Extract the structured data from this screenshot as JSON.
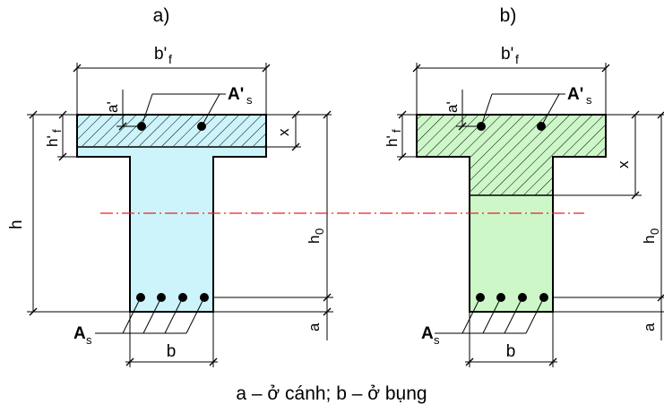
{
  "panels": [
    {
      "label": "a)",
      "flange_width": "b'",
      "flange_width_sub": "f",
      "flange_height": "h'",
      "flange_height_sub": "f",
      "cover_top": "a'",
      "top_rebar": "A'",
      "top_rebar_sub": "s",
      "compression_depth": "x",
      "total_height": "h",
      "effective_height": "h",
      "effective_height_sub": "0",
      "cover_bottom": "a",
      "bottom_rebar": "A",
      "bottom_rebar_sub": "s",
      "web_width": "b"
    },
    {
      "label": "b)",
      "flange_width": "b'",
      "flange_width_sub": "f",
      "flange_height": "h'",
      "flange_height_sub": "f",
      "cover_top": "a'",
      "top_rebar": "A'",
      "top_rebar_sub": "s",
      "compression_depth": "x",
      "effective_height": "h",
      "effective_height_sub": "0",
      "cover_bottom": "a",
      "bottom_rebar": "A",
      "bottom_rebar_sub": "s",
      "web_width": "b"
    }
  ],
  "caption": "a – ở cánh; b – ở bụng",
  "colors": {
    "panel_a_fill": "#cdf4fb",
    "panel_b_fill": "#cdf7c9",
    "neutral_axis": "#e8202a",
    "line": "#000000"
  }
}
